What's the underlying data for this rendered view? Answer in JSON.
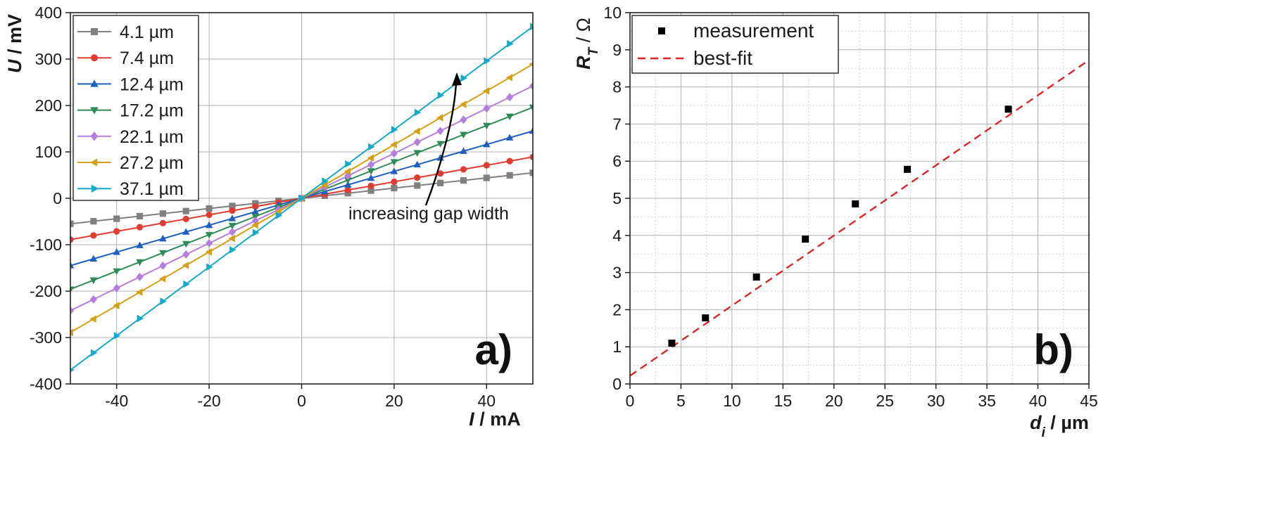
{
  "chart_data": [
    {
      "type": "line",
      "panel_label": "a)",
      "xlabel": "I / mA",
      "xlabel_var": "I",
      "xlabel_unit": " / mA",
      "ylabel": "U / mV",
      "ylabel_var": "U",
      "ylabel_unit": " / mV",
      "xlim": [
        -50,
        50
      ],
      "ylim": [
        -400,
        400
      ],
      "xticks": [
        -40,
        -20,
        0,
        20,
        40
      ],
      "yticks": [
        -400,
        -300,
        -200,
        -100,
        0,
        100,
        200,
        300,
        400
      ],
      "grid": true,
      "legend_position": "top-left",
      "annotation": "increasing gap width",
      "x": [
        -50,
        -45,
        -40,
        -35,
        -30,
        -25,
        -20,
        -15,
        -10,
        -5,
        0,
        5,
        10,
        15,
        20,
        25,
        30,
        35,
        40,
        45,
        50
      ],
      "series": [
        {
          "name": "4.1 µm",
          "color": "#808080",
          "marker": "square",
          "values": [
            -55,
            -49.5,
            -44,
            -38.5,
            -33,
            -27.5,
            -22,
            -16.5,
            -11,
            -5.5,
            0,
            5.5,
            11,
            16.5,
            22,
            27.5,
            33,
            38.5,
            44,
            49.5,
            55
          ]
        },
        {
          "name": "7.4 µm",
          "color": "#e03c31",
          "marker": "circle",
          "values": [
            -89,
            -80.1,
            -71.2,
            -62.3,
            -53.4,
            -44.5,
            -35.6,
            -26.7,
            -17.8,
            -8.9,
            0,
            8.9,
            17.8,
            26.7,
            35.6,
            44.5,
            53.4,
            62.3,
            71.2,
            80.1,
            89
          ]
        },
        {
          "name": "12.4 µm",
          "color": "#1f5fc0",
          "marker": "triangle-up",
          "values": [
            -145,
            -130.5,
            -116,
            -101.5,
            -87,
            -72.5,
            -58,
            -43.5,
            -29,
            -14.5,
            0,
            14.5,
            29,
            43.5,
            58,
            72.5,
            87,
            101.5,
            116,
            130.5,
            145
          ]
        },
        {
          "name": "17.2 µm",
          "color": "#2e8b57",
          "marker": "triangle-down",
          "values": [
            -196,
            -176.4,
            -156.8,
            -137.2,
            -117.6,
            -98,
            -78.4,
            -58.8,
            -39.2,
            -19.6,
            0,
            19.6,
            39.2,
            58.8,
            78.4,
            98,
            117.6,
            137.2,
            156.8,
            176.4,
            196
          ]
        },
        {
          "name": "22.1 µm",
          "color": "#b57edc",
          "marker": "diamond",
          "values": [
            -242,
            -217.8,
            -193.6,
            -169.4,
            -145.2,
            -121,
            -96.8,
            -72.6,
            -48.4,
            -24.2,
            0,
            24.2,
            48.4,
            72.6,
            96.8,
            121,
            145.2,
            169.4,
            193.6,
            217.8,
            242
          ]
        },
        {
          "name": "27.2 µm",
          "color": "#d4a017",
          "marker": "triangle-left",
          "values": [
            -289,
            -260.1,
            -231.2,
            -202.3,
            -173.4,
            -144.5,
            -115.6,
            -86.7,
            -57.8,
            -28.9,
            0,
            28.9,
            57.8,
            86.7,
            115.6,
            144.5,
            173.4,
            202.3,
            231.2,
            260.1,
            289
          ]
        },
        {
          "name": "37.1 µm",
          "color": "#17a9c8",
          "marker": "triangle-right",
          "values": [
            -370,
            -333,
            -296,
            -259,
            -222,
            -185,
            -148,
            -111,
            -74,
            -37,
            0,
            37,
            74,
            111,
            148,
            185,
            222,
            259,
            296,
            333,
            370
          ]
        }
      ]
    },
    {
      "type": "scatter",
      "panel_label": "b)",
      "xlabel": "d_i / µm",
      "xlabel_var": "d",
      "xlabel_sub": "i",
      "xlabel_unit": " / µm",
      "ylabel": "R_T / Ω",
      "ylabel_var": "R",
      "ylabel_sub": "T",
      "ylabel_unit": " / Ω",
      "xlim": [
        0,
        45
      ],
      "ylim": [
        0,
        10
      ],
      "xticks": [
        0,
        5,
        10,
        15,
        20,
        25,
        30,
        35,
        40,
        45
      ],
      "yticks": [
        0,
        1,
        2,
        3,
        4,
        5,
        6,
        7,
        8,
        9,
        10
      ],
      "grid": true,
      "legend_position": "top-left",
      "series": [
        {
          "name": "measurement",
          "color": "#000000",
          "marker": "square",
          "x": [
            4.1,
            7.4,
            12.4,
            17.2,
            22.1,
            27.2,
            37.1
          ],
          "y": [
            1.1,
            1.78,
            2.88,
            3.9,
            4.85,
            5.78,
            7.4
          ]
        },
        {
          "name": "best-fit",
          "color": "#d62728",
          "style": "dashed",
          "x": [
            0,
            45
          ],
          "y": [
            0.22,
            8.72
          ]
        }
      ]
    }
  ]
}
